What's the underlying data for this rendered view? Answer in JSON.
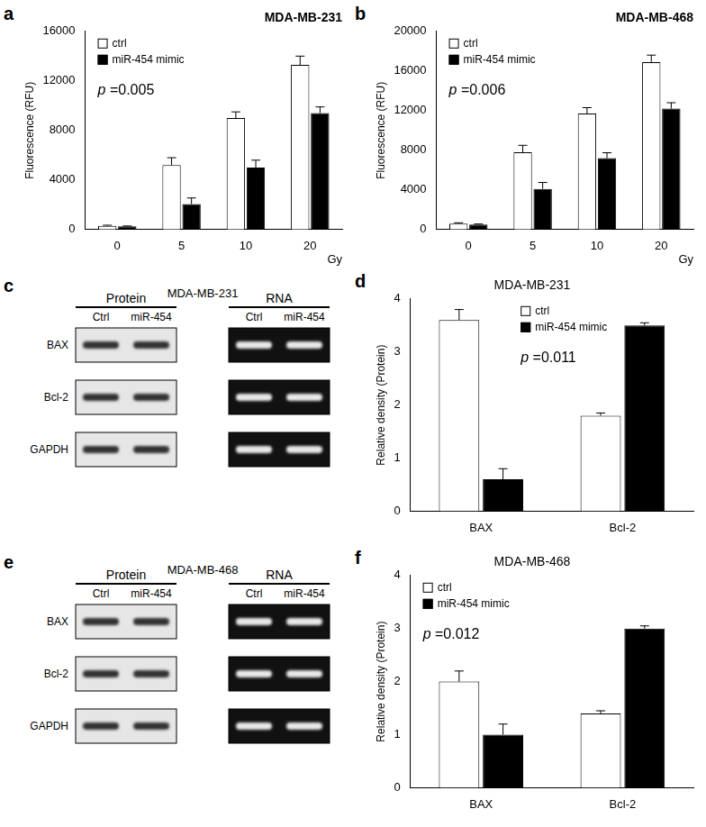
{
  "chart_data": [
    {
      "panel": "a",
      "type": "bar",
      "title": "MDA-MB-231",
      "y_label": "Fluorescence (RFU)",
      "x_label": "Gy",
      "categories": [
        "0",
        "5",
        "10",
        "20"
      ],
      "series": [
        {
          "name": "ctrl",
          "color": "#ffffff",
          "values": [
            300,
            5200,
            9000,
            13300
          ],
          "errors": [
            50,
            600,
            500,
            700
          ]
        },
        {
          "name": "miR-454 mimic",
          "color": "#000000",
          "values": [
            250,
            2050,
            5000,
            9400
          ],
          "errors": [
            40,
            500,
            600,
            500
          ]
        }
      ],
      "ylim": [
        0,
        16000
      ],
      "yticks": [
        0,
        4000,
        8000,
        12000,
        16000
      ],
      "grid": false,
      "legend": "upper left",
      "annotation": "p =0.005"
    },
    {
      "panel": "b",
      "type": "bar",
      "title": "MDA-MB-468",
      "y_label": "Fluorescence (RFU)",
      "x_label": "Gy",
      "categories": [
        "0",
        "5",
        "10",
        "20"
      ],
      "series": [
        {
          "name": "ctrl",
          "color": "#ffffff",
          "values": [
            600,
            7800,
            11700,
            16900
          ],
          "errors": [
            80,
            700,
            600,
            700
          ]
        },
        {
          "name": "miR-454 mimic",
          "color": "#000000",
          "values": [
            500,
            4100,
            7200,
            12200
          ],
          "errors": [
            60,
            650,
            550,
            600
          ]
        }
      ],
      "ylim": [
        0,
        20000
      ],
      "yticks": [
        0,
        4000,
        8000,
        12000,
        16000,
        20000
      ],
      "grid": false,
      "legend": "upper left",
      "annotation": "p =0.006"
    },
    {
      "panel": "d",
      "type": "bar",
      "title": "MDA-MB-231",
      "y_label": "Relative density (Protein)",
      "categories": [
        "BAX",
        "Bcl-2"
      ],
      "series": [
        {
          "name": "ctrl",
          "color": "#ffffff",
          "values": [
            3.6,
            1.8
          ],
          "errors": [
            0.2,
            0.05
          ]
        },
        {
          "name": "miR-454 mimic",
          "color": "#000000",
          "values": [
            0.6,
            3.5
          ],
          "errors": [
            0.2,
            0.05
          ]
        }
      ],
      "ylim": [
        0,
        4
      ],
      "yticks": [
        0,
        1,
        2,
        3,
        4
      ],
      "grid": false,
      "legend": "upper center",
      "annotation": "p =0.011"
    },
    {
      "panel": "f",
      "type": "bar",
      "title": "MDA-MB-468",
      "y_label": "Relative density (Protein)",
      "categories": [
        "BAX",
        "Bcl-2"
      ],
      "series": [
        {
          "name": "ctrl",
          "color": "#ffffff",
          "values": [
            2.0,
            1.4
          ],
          "errors": [
            0.2,
            0.05
          ]
        },
        {
          "name": "miR-454 mimic",
          "color": "#000000",
          "values": [
            1.0,
            3.0
          ],
          "errors": [
            0.2,
            0.05
          ]
        }
      ],
      "ylim": [
        0,
        4
      ],
      "yticks": [
        0,
        1,
        2,
        3,
        4
      ],
      "grid": false,
      "legend": "upper left",
      "annotation": "p =0.012"
    }
  ],
  "blots": [
    {
      "panel": "c",
      "title": "MDA-MB-231",
      "groups": [
        {
          "title": "Protein",
          "lanes": [
            "Ctrl",
            "miR-454"
          ]
        },
        {
          "title": "RNA",
          "lanes": [
            "Ctrl",
            "miR-454"
          ]
        }
      ],
      "rows": [
        "BAX",
        "Bcl-2",
        "GAPDH"
      ]
    },
    {
      "panel": "e",
      "title": "MDA-MB-468",
      "groups": [
        {
          "title": "Protein",
          "lanes": [
            "Ctrl",
            "miR-454"
          ]
        },
        {
          "title": "RNA",
          "lanes": [
            "Ctrl",
            "miR-454"
          ]
        }
      ],
      "rows": [
        "BAX",
        "Bcl-2",
        "GAPDH"
      ]
    }
  ]
}
